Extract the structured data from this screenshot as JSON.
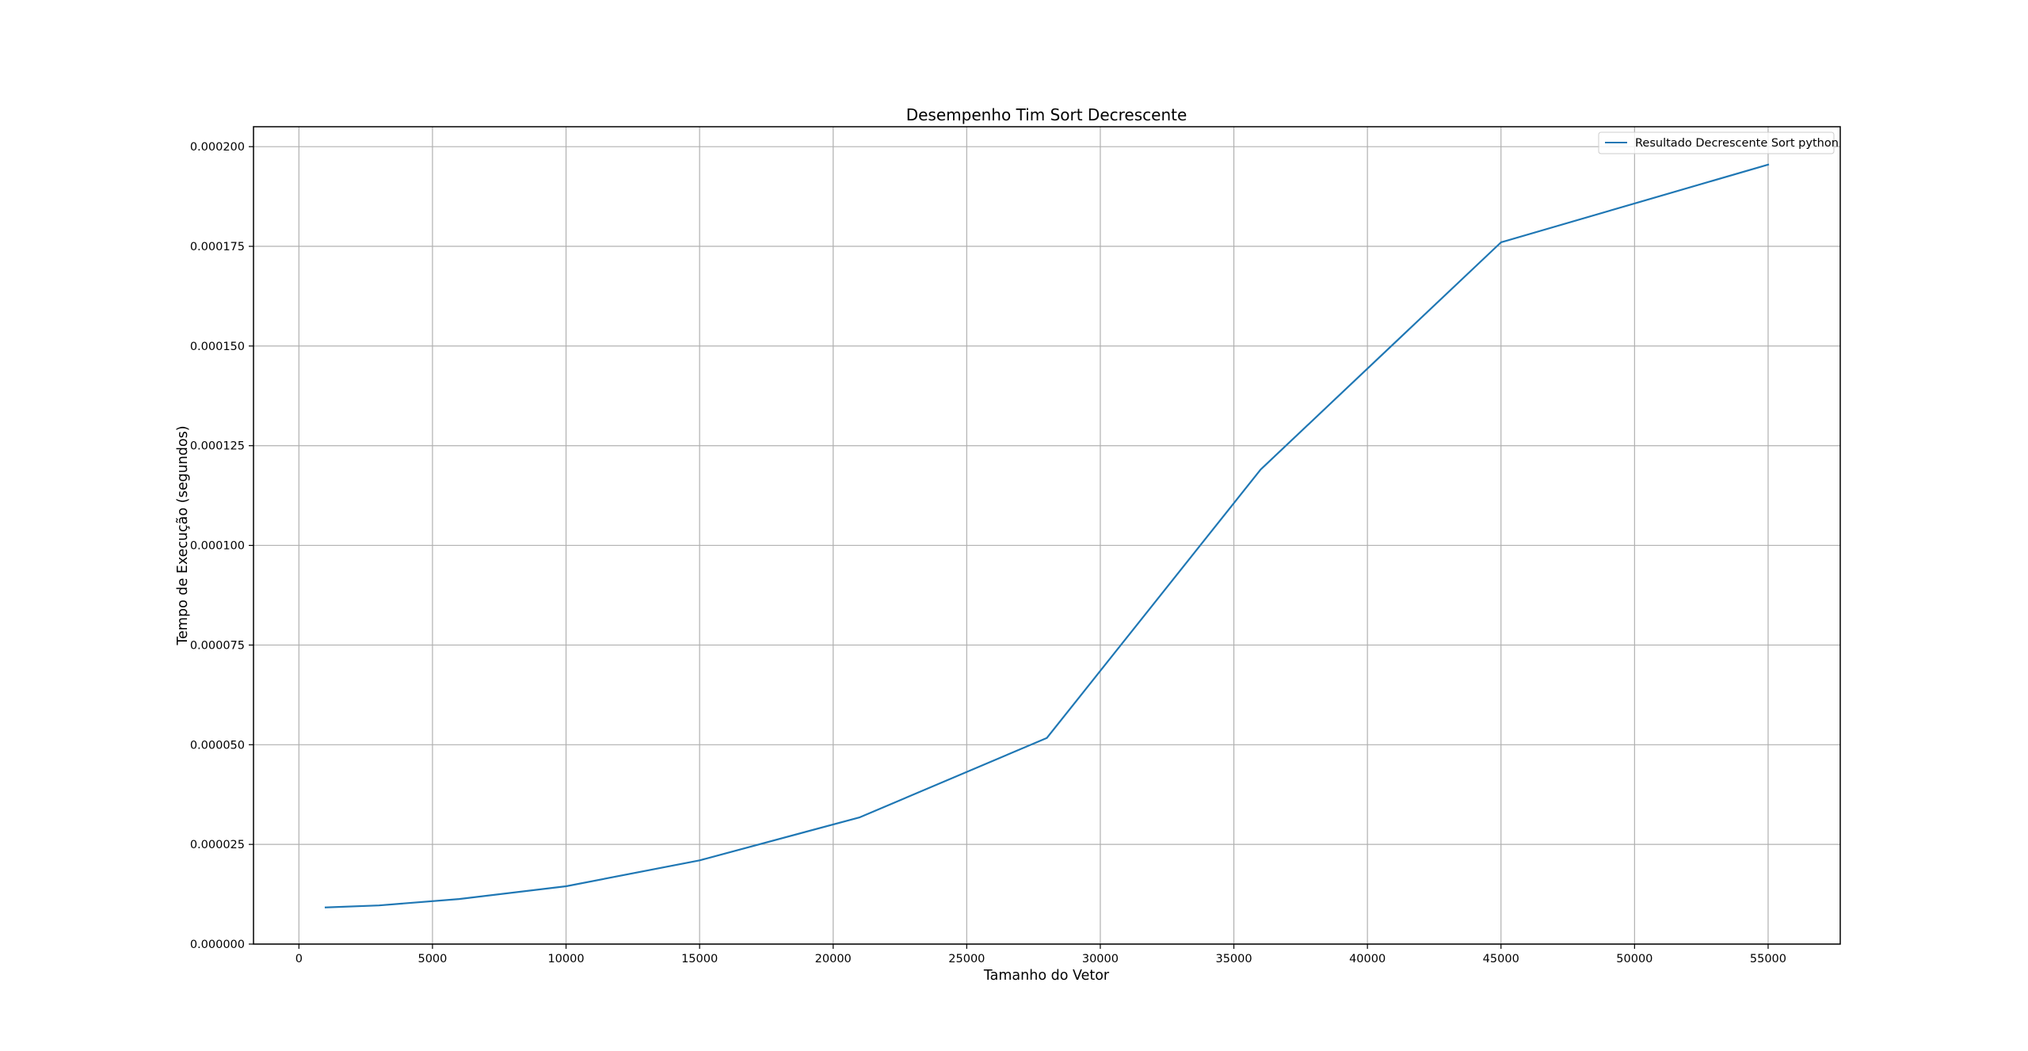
{
  "chart_data": {
    "type": "line",
    "title": "Desempenho Tim Sort Decrescente",
    "xlabel": "Tamanho do Vetor",
    "ylabel": "Tempo de Execução (segundos)",
    "xlim": [
      -1700,
      57700
    ],
    "ylim": [
      0,
      0.000205
    ],
    "xticks": [
      0,
      5000,
      10000,
      15000,
      20000,
      25000,
      30000,
      35000,
      40000,
      45000,
      50000,
      55000
    ],
    "xtick_labels": [
      "0",
      "5000",
      "10000",
      "15000",
      "20000",
      "25000",
      "30000",
      "35000",
      "40000",
      "45000",
      "50000",
      "55000"
    ],
    "yticks": [
      0,
      2.5e-05,
      5e-05,
      7.5e-05,
      0.0001,
      0.000125,
      0.00015,
      0.000175,
      0.0002
    ],
    "ytick_labels": [
      "0.000000",
      "0.000025",
      "0.000050",
      "0.000075",
      "0.000100",
      "0.000125",
      "0.000150",
      "0.000175",
      "0.000200"
    ],
    "grid": true,
    "legend_position": "top-right",
    "series": [
      {
        "name": "Resultado Decrescente Sort python",
        "color": "#1f77b4",
        "x": [
          1000,
          3000,
          6000,
          10000,
          15000,
          21000,
          28000,
          36000,
          45000,
          55000
        ],
        "y": [
          9.2e-06,
          9.7e-06,
          1.13e-05,
          1.45e-05,
          2.1e-05,
          3.18e-05,
          5.17e-05,
          0.000119,
          0.000176,
          0.0001955
        ]
      }
    ]
  }
}
